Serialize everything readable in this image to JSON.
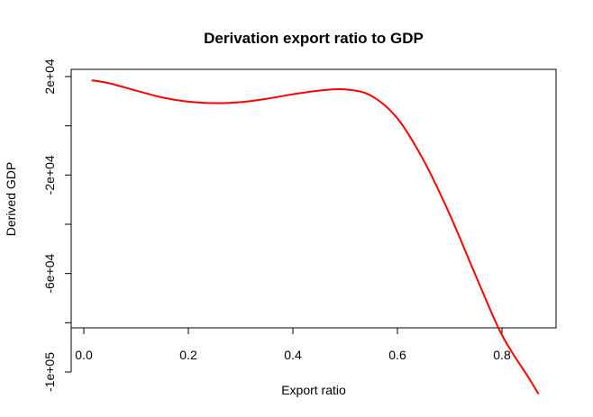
{
  "chart_data": {
    "type": "line",
    "title": "Derivation export ratio to GDP",
    "xlabel": "Export ratio",
    "ylabel": "Derived GDP",
    "xlim": [
      0.0,
      0.87
    ],
    "ylim": [
      -110000,
      20000
    ],
    "x_ticks": [
      0.0,
      0.2,
      0.4,
      0.6,
      0.8
    ],
    "x_tick_labels": [
      "0.0",
      "0.2",
      "0.4",
      "0.6",
      "0.8"
    ],
    "y_ticks": [
      20000,
      0,
      -20000,
      -40000,
      -60000,
      -80000,
      -100000
    ],
    "y_tick_labels": [
      "2e+04",
      "",
      "-2e+04",
      "",
      "-6e+04",
      "",
      "-1e+05"
    ],
    "grid": false,
    "series": [
      {
        "color": "#ff0000",
        "x": [
          0.015,
          0.05,
          0.1,
          0.15,
          0.2,
          0.25,
          0.3,
          0.35,
          0.4,
          0.45,
          0.5,
          0.55,
          0.6,
          0.65,
          0.7,
          0.75,
          0.8,
          0.85,
          0.87
        ],
        "y": [
          18500,
          17200,
          14300,
          11500,
          9800,
          9200,
          9600,
          11000,
          12800,
          14300,
          14800,
          12200,
          3000,
          -14000,
          -36000,
          -61000,
          -85000,
          -102000,
          -109000
        ]
      }
    ]
  }
}
